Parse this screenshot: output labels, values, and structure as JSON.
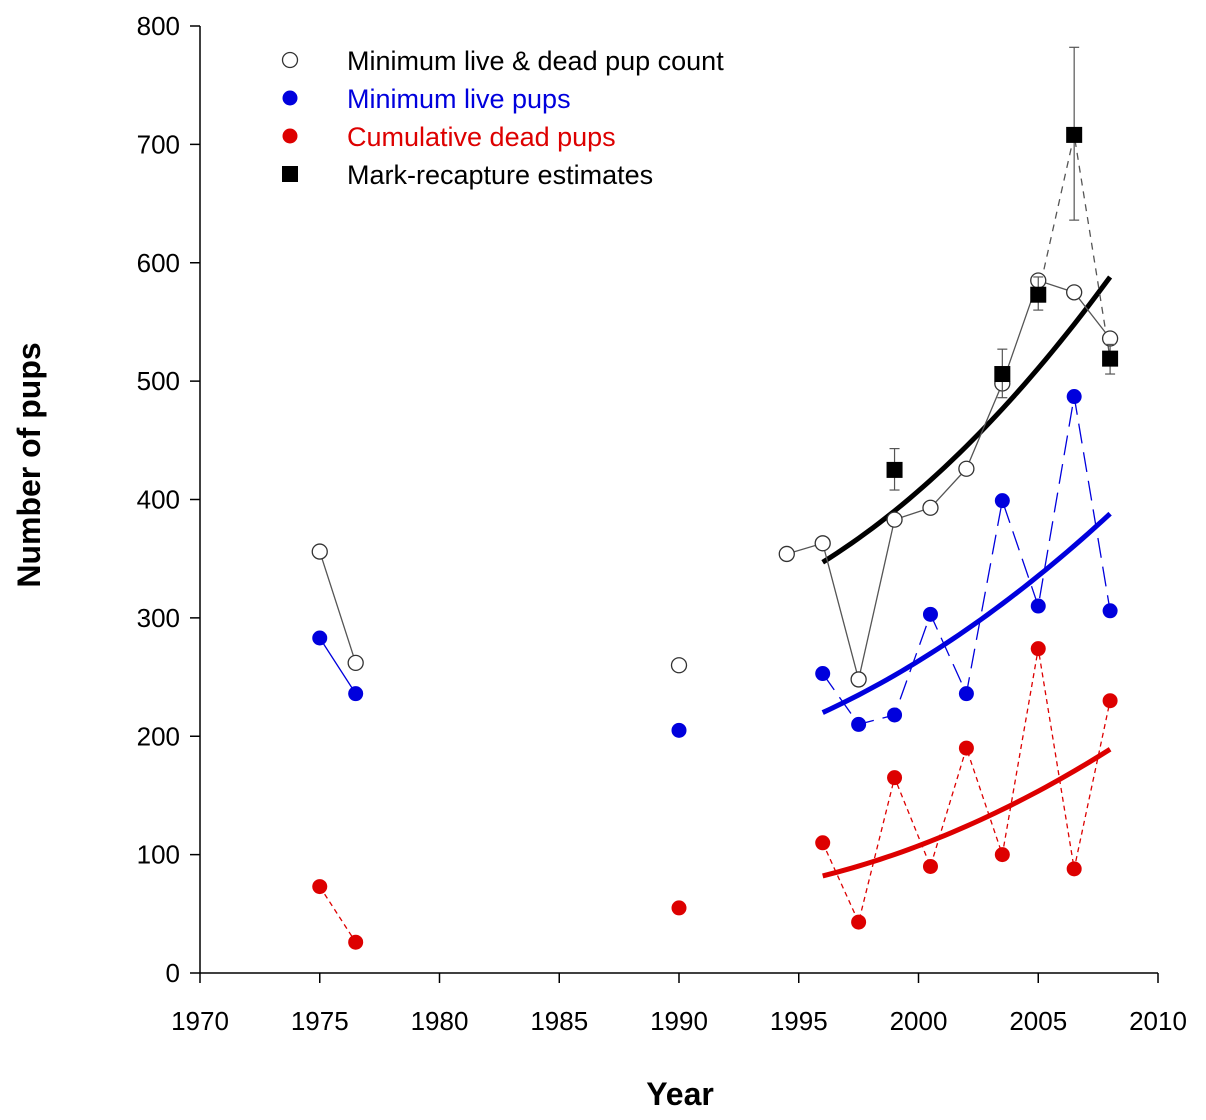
{
  "chart_data": {
    "type": "scatter",
    "xlabel": "Year",
    "ylabel": "Number of pups",
    "xlim": [
      1970,
      2010
    ],
    "ylim": [
      0,
      800
    ],
    "xticks": [
      "1970",
      "1975",
      "1980",
      "1985",
      "1990",
      "1995",
      "2000",
      "2005",
      "2010"
    ],
    "yticks": [
      "0",
      "100",
      "200",
      "300",
      "400",
      "500",
      "600",
      "700",
      "800"
    ],
    "legend_position": "top-left",
    "series": [
      {
        "name": "Minimum live & dead pup count",
        "marker": "open-circle",
        "color": "#000000",
        "line": "solid",
        "segments": [
          [
            [
              1975,
              356
            ],
            [
              1976.5,
              262
            ]
          ],
          [
            [
              1990,
              260
            ]
          ],
          [
            [
              1994.5,
              354
            ],
            [
              1996,
              363
            ],
            [
              1997.5,
              248
            ],
            [
              1999,
              383
            ],
            [
              2000.5,
              393
            ],
            [
              2002,
              426
            ],
            [
              2003.5,
              498
            ],
            [
              2005,
              585
            ],
            [
              2006.5,
              575
            ],
            [
              2008,
              536
            ]
          ]
        ]
      },
      {
        "name": "Minimum live pups",
        "marker": "filled-circle",
        "color": "#0000dd",
        "line": "solid-then-dashed",
        "segments": [
          [
            [
              1975,
              283
            ],
            [
              1976.5,
              236
            ]
          ],
          [
            [
              1990,
              205
            ]
          ],
          [
            [
              1996,
              253
            ],
            [
              1997.5,
              210
            ],
            [
              1999,
              218
            ],
            [
              2000.5,
              303
            ],
            [
              2002,
              236
            ],
            [
              2003.5,
              399
            ],
            [
              2005,
              310
            ],
            [
              2006.5,
              487
            ],
            [
              2008,
              306
            ]
          ]
        ]
      },
      {
        "name": "Cumulative dead pups",
        "marker": "filled-circle",
        "color": "#dd0000",
        "line": "dotted",
        "segments": [
          [
            [
              1975,
              73
            ],
            [
              1976.5,
              26
            ]
          ],
          [
            [
              1990,
              55
            ]
          ],
          [
            [
              1996,
              110
            ],
            [
              1997.5,
              43
            ],
            [
              1999,
              165
            ],
            [
              2000.5,
              90
            ],
            [
              2002,
              190
            ],
            [
              2003.5,
              100
            ],
            [
              2005,
              274
            ],
            [
              2006.5,
              88
            ],
            [
              2008,
              230
            ]
          ]
        ]
      },
      {
        "name": "Mark-recapture estimates",
        "marker": "filled-square",
        "color": "#000000",
        "line": "dashed",
        "points": [
          {
            "x": 1999,
            "y": 425,
            "lo": 408,
            "hi": 443
          },
          {
            "x": 2003.5,
            "y": 506,
            "lo": 486,
            "hi": 527
          },
          {
            "x": 2005,
            "y": 573,
            "lo": 560,
            "hi": 588
          },
          {
            "x": 2006.5,
            "y": 708,
            "lo": 636,
            "hi": 782
          },
          {
            "x": 2008,
            "y": 519,
            "lo": 506,
            "hi": 531
          }
        ]
      }
    ],
    "trend_lines": [
      {
        "color": "#000000",
        "points": [
          [
            1996,
            347
          ],
          [
            2002,
            445
          ],
          [
            2008,
            588
          ]
        ]
      },
      {
        "color": "#0000dd",
        "points": [
          [
            1996,
            220
          ],
          [
            2002,
            290
          ],
          [
            2008,
            388
          ]
        ]
      },
      {
        "color": "#dd0000",
        "points": [
          [
            1996,
            82
          ],
          [
            2002,
            124
          ],
          [
            2008,
            189
          ]
        ]
      }
    ]
  }
}
